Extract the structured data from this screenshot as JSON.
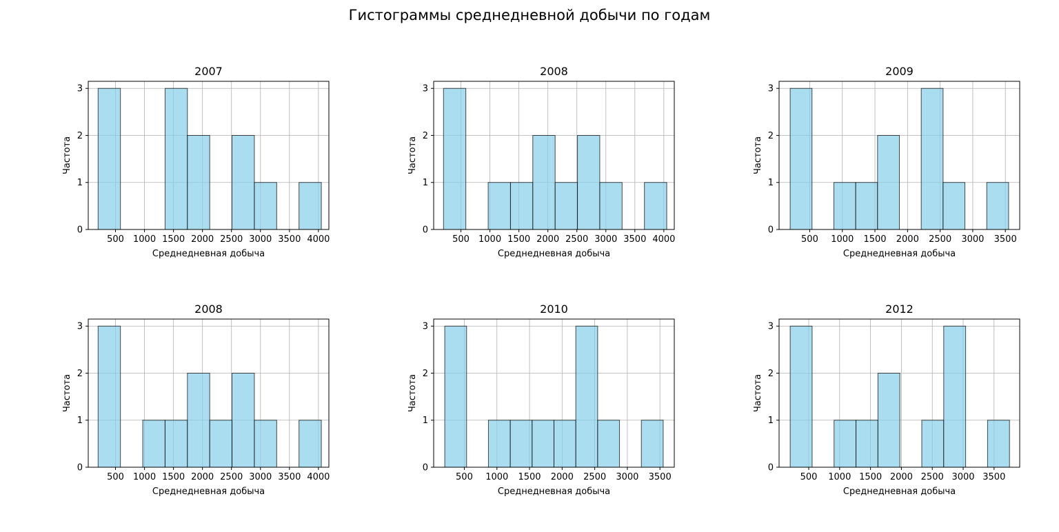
{
  "figure": {
    "suptitle": "Гистограммы среднедневной добычи по годам"
  },
  "colors": {
    "bar_fill": "#87CEEB",
    "bar_edge": "#000000",
    "grid": "#b0b0b0"
  },
  "chart_data": [
    {
      "type": "bar",
      "title": "2007",
      "xlabel": "Среднедневная добыча",
      "ylabel": "Частота",
      "xlim": [
        30,
        4180
      ],
      "ylim": [
        0,
        3.15
      ],
      "xticks": [
        500,
        1000,
        1500,
        2000,
        2500,
        3000,
        3500,
        4000
      ],
      "yticks": [
        0,
        1,
        2,
        3
      ],
      "grid": true,
      "bins": [
        {
          "x0": 200,
          "x1": 585,
          "count": 3
        },
        {
          "x0": 585,
          "x1": 970,
          "count": 0
        },
        {
          "x0": 970,
          "x1": 1355,
          "count": 0
        },
        {
          "x0": 1355,
          "x1": 1740,
          "count": 3
        },
        {
          "x0": 1740,
          "x1": 2125,
          "count": 2
        },
        {
          "x0": 2125,
          "x1": 2510,
          "count": 0
        },
        {
          "x0": 2510,
          "x1": 2895,
          "count": 2
        },
        {
          "x0": 2895,
          "x1": 3280,
          "count": 1
        },
        {
          "x0": 3280,
          "x1": 3665,
          "count": 0
        },
        {
          "x0": 3665,
          "x1": 4050,
          "count": 1
        }
      ]
    },
    {
      "type": "bar",
      "title": "2008",
      "xlabel": "Среднедневная добыча",
      "ylabel": "Частота",
      "xlim": [
        30,
        4180
      ],
      "ylim": [
        0,
        3.15
      ],
      "xticks": [
        500,
        1000,
        1500,
        2000,
        2500,
        3000,
        3500,
        4000
      ],
      "yticks": [
        0,
        1,
        2,
        3
      ],
      "grid": true,
      "bins": [
        {
          "x0": 200,
          "x1": 585,
          "count": 3
        },
        {
          "x0": 585,
          "x1": 970,
          "count": 0
        },
        {
          "x0": 970,
          "x1": 1355,
          "count": 1
        },
        {
          "x0": 1355,
          "x1": 1740,
          "count": 1
        },
        {
          "x0": 1740,
          "x1": 2125,
          "count": 2
        },
        {
          "x0": 2125,
          "x1": 2510,
          "count": 1
        },
        {
          "x0": 2510,
          "x1": 2895,
          "count": 2
        },
        {
          "x0": 2895,
          "x1": 3280,
          "count": 1
        },
        {
          "x0": 3280,
          "x1": 3665,
          "count": 0
        },
        {
          "x0": 3665,
          "x1": 4050,
          "count": 1
        }
      ]
    },
    {
      "type": "bar",
      "title": "2009",
      "xlabel": "Среднедневная добыча",
      "ylabel": "Частота",
      "xlim": [
        30,
        3720
      ],
      "ylim": [
        0,
        3.15
      ],
      "xticks": [
        500,
        1000,
        1500,
        2000,
        2500,
        3000,
        3500
      ],
      "yticks": [
        0,
        1,
        2,
        3
      ],
      "grid": true,
      "bins": [
        {
          "x0": 200,
          "x1": 535,
          "count": 3
        },
        {
          "x0": 535,
          "x1": 870,
          "count": 0
        },
        {
          "x0": 870,
          "x1": 1205,
          "count": 1
        },
        {
          "x0": 1205,
          "x1": 1540,
          "count": 1
        },
        {
          "x0": 1540,
          "x1": 1875,
          "count": 2
        },
        {
          "x0": 1875,
          "x1": 2210,
          "count": 0
        },
        {
          "x0": 2210,
          "x1": 2545,
          "count": 3
        },
        {
          "x0": 2545,
          "x1": 2880,
          "count": 1
        },
        {
          "x0": 2880,
          "x1": 3215,
          "count": 0
        },
        {
          "x0": 3215,
          "x1": 3550,
          "count": 1
        }
      ]
    },
    {
      "type": "bar",
      "title": "2008",
      "xlabel": "Среднедневная добыча",
      "ylabel": "Частота",
      "xlim": [
        30,
        4180
      ],
      "ylim": [
        0,
        3.15
      ],
      "xticks": [
        500,
        1000,
        1500,
        2000,
        2500,
        3000,
        3500,
        4000
      ],
      "yticks": [
        0,
        1,
        2,
        3
      ],
      "grid": true,
      "bins": [
        {
          "x0": 200,
          "x1": 585,
          "count": 3
        },
        {
          "x0": 585,
          "x1": 970,
          "count": 0
        },
        {
          "x0": 970,
          "x1": 1355,
          "count": 1
        },
        {
          "x0": 1355,
          "x1": 1740,
          "count": 1
        },
        {
          "x0": 1740,
          "x1": 2125,
          "count": 2
        },
        {
          "x0": 2125,
          "x1": 2510,
          "count": 1
        },
        {
          "x0": 2510,
          "x1": 2895,
          "count": 2
        },
        {
          "x0": 2895,
          "x1": 3280,
          "count": 1
        },
        {
          "x0": 3280,
          "x1": 3665,
          "count": 0
        },
        {
          "x0": 3665,
          "x1": 4050,
          "count": 1
        }
      ]
    },
    {
      "type": "bar",
      "title": "2010",
      "xlabel": "Среднедневная добыча",
      "ylabel": "Частота",
      "xlim": [
        30,
        3720
      ],
      "ylim": [
        0,
        3.15
      ],
      "xticks": [
        500,
        1000,
        1500,
        2000,
        2500,
        3000,
        3500
      ],
      "yticks": [
        0,
        1,
        2,
        3
      ],
      "grid": true,
      "bins": [
        {
          "x0": 200,
          "x1": 535,
          "count": 3
        },
        {
          "x0": 535,
          "x1": 870,
          "count": 0
        },
        {
          "x0": 870,
          "x1": 1205,
          "count": 1
        },
        {
          "x0": 1205,
          "x1": 1540,
          "count": 1
        },
        {
          "x0": 1540,
          "x1": 1875,
          "count": 1
        },
        {
          "x0": 1875,
          "x1": 2210,
          "count": 1
        },
        {
          "x0": 2210,
          "x1": 2545,
          "count": 3
        },
        {
          "x0": 2545,
          "x1": 2880,
          "count": 1
        },
        {
          "x0": 2880,
          "x1": 3215,
          "count": 0
        },
        {
          "x0": 3215,
          "x1": 3550,
          "count": 1
        }
      ]
    },
    {
      "type": "bar",
      "title": "2012",
      "xlabel": "Среднедневная добыча",
      "ylabel": "Частота",
      "xlim": [
        20,
        3915
      ],
      "ylim": [
        0,
        3.15
      ],
      "xticks": [
        500,
        1000,
        1500,
        2000,
        2500,
        3000,
        3500
      ],
      "yticks": [
        0,
        1,
        2,
        3
      ],
      "grid": true,
      "bins": [
        {
          "x0": 200,
          "x1": 555,
          "count": 3
        },
        {
          "x0": 555,
          "x1": 910,
          "count": 0
        },
        {
          "x0": 910,
          "x1": 1265,
          "count": 1
        },
        {
          "x0": 1265,
          "x1": 1620,
          "count": 1
        },
        {
          "x0": 1620,
          "x1": 1975,
          "count": 2
        },
        {
          "x0": 1975,
          "x1": 2330,
          "count": 0
        },
        {
          "x0": 2330,
          "x1": 2685,
          "count": 1
        },
        {
          "x0": 2685,
          "x1": 3040,
          "count": 3
        },
        {
          "x0": 3040,
          "x1": 3395,
          "count": 0
        },
        {
          "x0": 3395,
          "x1": 3750,
          "count": 1
        }
      ]
    }
  ]
}
